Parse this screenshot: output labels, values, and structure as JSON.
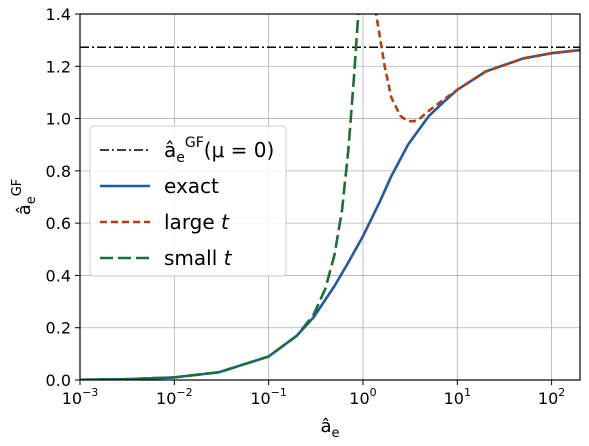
{
  "chart_data": {
    "type": "line",
    "xlabel": "â_e",
    "ylabel": "â_e^GF",
    "xscale": "log",
    "xlim": [
      0.001,
      200
    ],
    "ylim": [
      0.0,
      1.4
    ],
    "grid": true,
    "legend_position": "center-left",
    "x_ticks": [
      {
        "base": "10",
        "exp": "−3",
        "value": 0.001
      },
      {
        "base": "10",
        "exp": "−2",
        "value": 0.01
      },
      {
        "base": "10",
        "exp": "−1",
        "value": 0.1
      },
      {
        "base": "10",
        "exp": "0",
        "value": 1
      },
      {
        "base": "10",
        "exp": "1",
        "value": 10
      },
      {
        "base": "10",
        "exp": "2",
        "value": 100
      }
    ],
    "y_ticks": [
      {
        "label": "0.0",
        "value": 0.0
      },
      {
        "label": "0.2",
        "value": 0.2
      },
      {
        "label": "0.4",
        "value": 0.4
      },
      {
        "label": "0.6",
        "value": 0.6
      },
      {
        "label": "0.8",
        "value": 0.8
      },
      {
        "label": "1.0",
        "value": 1.0
      },
      {
        "label": "1.2",
        "value": 1.2
      },
      {
        "label": "1.4",
        "value": 1.4
      }
    ],
    "series": [
      {
        "name": "â_e^GF(μ = 0)",
        "color": "#000000",
        "dash": "dashdot",
        "x": [
          0.001,
          200
        ],
        "y": [
          1.273,
          1.273
        ]
      },
      {
        "name": "exact",
        "color": "#1f5aa6",
        "dash": "solid",
        "x": [
          0.001,
          0.003,
          0.01,
          0.03,
          0.1,
          0.2,
          0.3,
          0.5,
          0.7,
          1,
          1.5,
          2,
          3,
          5,
          7,
          10,
          20,
          50,
          100,
          200
        ],
        "y": [
          0.001,
          0.003,
          0.01,
          0.03,
          0.09,
          0.17,
          0.24,
          0.36,
          0.45,
          0.55,
          0.68,
          0.78,
          0.9,
          1.01,
          1.06,
          1.11,
          1.18,
          1.23,
          1.25,
          1.262
        ]
      },
      {
        "name": "large t",
        "color": "#b5400f",
        "dash": "dashed",
        "x": [
          1.35,
          1.5,
          1.7,
          2,
          2.5,
          3,
          3.5,
          4,
          5,
          7,
          10,
          20,
          50,
          100,
          200
        ],
        "y": [
          1.42,
          1.32,
          1.2,
          1.08,
          1.01,
          0.99,
          0.99,
          1.0,
          1.03,
          1.07,
          1.11,
          1.18,
          1.23,
          1.25,
          1.262
        ]
      },
      {
        "name": "small t",
        "color": "#1a7035",
        "dash": "longdash",
        "x": [
          0.001,
          0.003,
          0.01,
          0.03,
          0.1,
          0.2,
          0.3,
          0.4,
          0.5,
          0.6,
          0.7,
          0.8,
          0.9
        ],
        "y": [
          0.001,
          0.003,
          0.01,
          0.03,
          0.09,
          0.17,
          0.25,
          0.35,
          0.48,
          0.65,
          0.88,
          1.15,
          1.42
        ]
      }
    ]
  }
}
